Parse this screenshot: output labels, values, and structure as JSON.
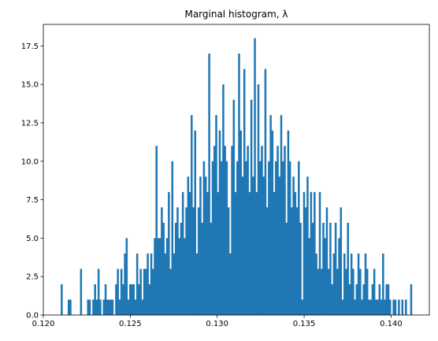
{
  "chart_data": {
    "type": "histogram",
    "title": "Marginal histogram, λ",
    "color": "#1f77b4",
    "bins": [
      0.121,
      0.121101,
      0.121202,
      0.121303,
      0.121404,
      0.121505,
      0.121606,
      0.121707,
      0.121808,
      0.121909,
      0.12201,
      0.122111,
      0.122212,
      0.122313,
      0.122414,
      0.122515,
      0.122616,
      0.122717,
      0.122818,
      0.122919,
      0.12302,
      0.123121,
      0.123222,
      0.123323,
      0.123424,
      0.123525,
      0.123626,
      0.123727,
      0.123828,
      0.123929,
      0.12403,
      0.124131,
      0.124232,
      0.124333,
      0.124434,
      0.124535,
      0.124636,
      0.124737,
      0.124838,
      0.124939,
      0.12504,
      0.125141,
      0.125242,
      0.125343,
      0.125444,
      0.125545,
      0.125646,
      0.125747,
      0.125848,
      0.125949,
      0.12605,
      0.126151,
      0.126252,
      0.126353,
      0.126454,
      0.126555,
      0.126656,
      0.126757,
      0.126858,
      0.126959,
      0.12706,
      0.127161,
      0.127262,
      0.127363,
      0.127464,
      0.127565,
      0.127666,
      0.127767,
      0.127868,
      0.127969,
      0.12807,
      0.128171,
      0.128272,
      0.128373,
      0.128474,
      0.128575,
      0.128676,
      0.128777,
      0.128878,
      0.128979,
      0.12908,
      0.129181,
      0.129282,
      0.129383,
      0.129484,
      0.129585,
      0.129686,
      0.129787,
      0.129888,
      0.129989,
      0.13009,
      0.130191,
      0.130292,
      0.130393,
      0.130494,
      0.130595,
      0.130696,
      0.130797,
      0.130898,
      0.130999,
      0.1311,
      0.131201,
      0.131302,
      0.131403,
      0.131504,
      0.131605,
      0.131706,
      0.131807,
      0.131908,
      0.132009,
      0.13211,
      0.132211,
      0.132312,
      0.132413,
      0.132514,
      0.132615,
      0.132716,
      0.132817,
      0.132918,
      0.133019,
      0.13312,
      0.133221,
      0.133322,
      0.133423,
      0.133524,
      0.133625,
      0.133726,
      0.133827,
      0.133928,
      0.134029,
      0.13413,
      0.134231,
      0.134332,
      0.134433,
      0.134534,
      0.134635,
      0.134736,
      0.134837,
      0.134938,
      0.135039,
      0.13514,
      0.135241,
      0.135342,
      0.135443,
      0.135544,
      0.135645,
      0.135746,
      0.135847,
      0.135948,
      0.136049,
      0.13615,
      0.136251,
      0.136352,
      0.136453,
      0.136554,
      0.136655,
      0.136756,
      0.136857,
      0.136958,
      0.137059,
      0.13716,
      0.137261,
      0.137362,
      0.137463,
      0.137564,
      0.137665,
      0.137766,
      0.137867,
      0.137968,
      0.138069,
      0.13817,
      0.138271,
      0.138372,
      0.138473,
      0.138574,
      0.138675,
      0.138776,
      0.138877,
      0.138978,
      0.139079,
      0.13918,
      0.139281,
      0.139382,
      0.139483,
      0.139584,
      0.139685,
      0.139786,
      0.139887,
      0.139988,
      0.140089,
      0.14019,
      0.140291,
      0.140392,
      0.140493,
      0.140594,
      0.140695,
      0.140796,
      0.140897,
      0.140998,
      0.141099,
      0.1412
    ],
    "counts": [
      2,
      0,
      0,
      0,
      1,
      1,
      0,
      0,
      0,
      0,
      0,
      3,
      0,
      0,
      0,
      1,
      1,
      0,
      1,
      2,
      1,
      3,
      1,
      0,
      1,
      2,
      1,
      1,
      1,
      1,
      0,
      2,
      3,
      1,
      3,
      2,
      4,
      5,
      1,
      2,
      2,
      2,
      1,
      4,
      2,
      3,
      1,
      3,
      3,
      4,
      2,
      4,
      3,
      5,
      11,
      5,
      5,
      7,
      6,
      4,
      5,
      8,
      3,
      10,
      4,
      6,
      7,
      5,
      6,
      8,
      5,
      7,
      9,
      8,
      13,
      7,
      12,
      4,
      7,
      9,
      6,
      10,
      9,
      8,
      17,
      6,
      10,
      11,
      13,
      8,
      12,
      10,
      15,
      11,
      10,
      7,
      4,
      11,
      14,
      8,
      10,
      17,
      12,
      9,
      16,
      10,
      11,
      8,
      14,
      9,
      18,
      8,
      15,
      10,
      11,
      9,
      16,
      7,
      10,
      13,
      12,
      8,
      10,
      11,
      9,
      13,
      10,
      11,
      6,
      12,
      10,
      7,
      9,
      8,
      7,
      10,
      6,
      1,
      8,
      7,
      9,
      5,
      8,
      6,
      8,
      4,
      3,
      8,
      3,
      6,
      5,
      7,
      3,
      6,
      2,
      4,
      6,
      3,
      5,
      7,
      1,
      4,
      3,
      6,
      2,
      4,
      3,
      1,
      2,
      4,
      3,
      1,
      2,
      4,
      3,
      1,
      1,
      2,
      3,
      1,
      1,
      2,
      1,
      4,
      1,
      2,
      2,
      1,
      0,
      1,
      1,
      0,
      1,
      0,
      1,
      0,
      1,
      0,
      0,
      2
    ],
    "xlim": [
      0.12,
      0.1422
    ],
    "xticks": [
      {
        "value": 0.12,
        "label": "0.120"
      },
      0.125,
      {
        "value": 0.13,
        "label": "0.130"
      },
      0.135,
      {
        "value": 0.14,
        "label": "0.140"
      }
    ],
    "ylim": [
      0,
      18.9
    ],
    "yticks": [
      {
        "value": 0,
        "label": "0.0"
      },
      2.5,
      {
        "value": 5,
        "label": "5.0"
      },
      7.5,
      {
        "value": 10,
        "label": "10.0"
      },
      12.5,
      {
        "value": 15,
        "label": "15.0"
      },
      17.5
    ]
  }
}
